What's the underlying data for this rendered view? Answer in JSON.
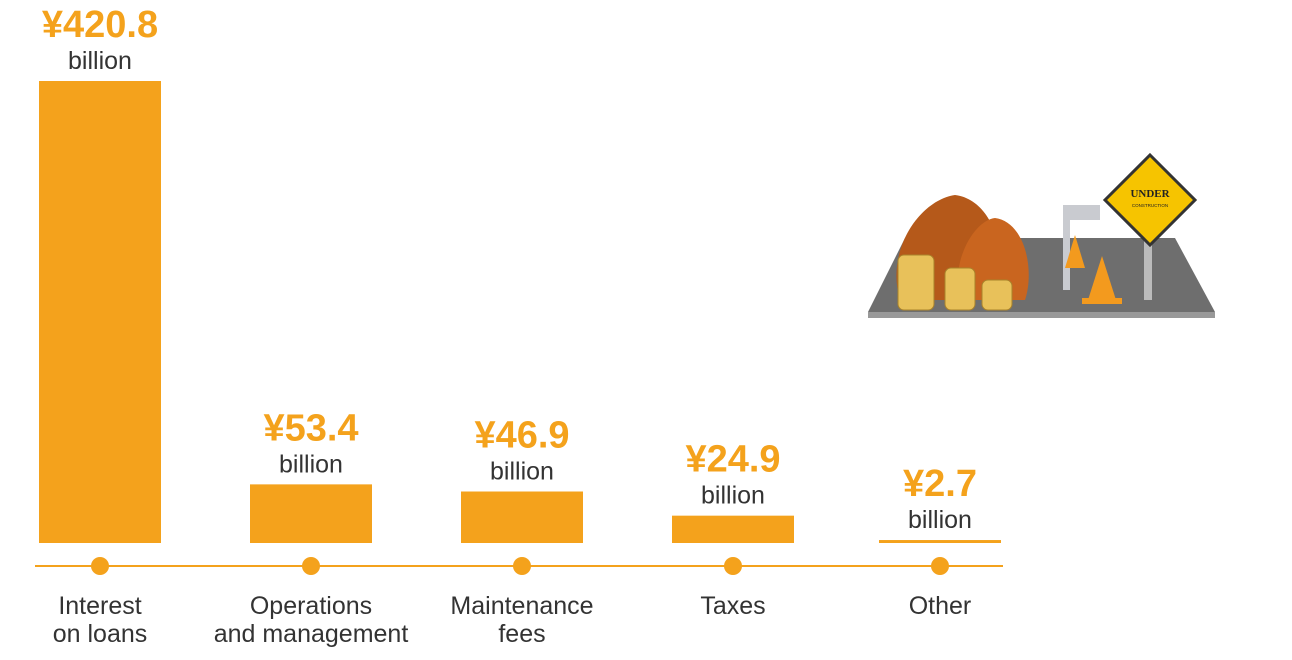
{
  "chart_data": {
    "type": "bar",
    "categories": [
      [
        "Interest",
        "on loans"
      ],
      [
        "Operations",
        "and management"
      ],
      [
        "Maintenance",
        "fees"
      ],
      [
        "Taxes"
      ],
      [
        "Other"
      ]
    ],
    "values": [
      420.8,
      53.4,
      46.9,
      24.9,
      2.7
    ],
    "value_labels": [
      "¥420.8",
      "¥53.4",
      "¥46.9",
      "¥24.9",
      "¥2.7"
    ],
    "unit_label": "billion",
    "color": "#f4a21c",
    "ylim": [
      0,
      420.8
    ]
  },
  "illustration": {
    "sign": [
      "UNDER",
      "CONSTRUCTION"
    ]
  }
}
